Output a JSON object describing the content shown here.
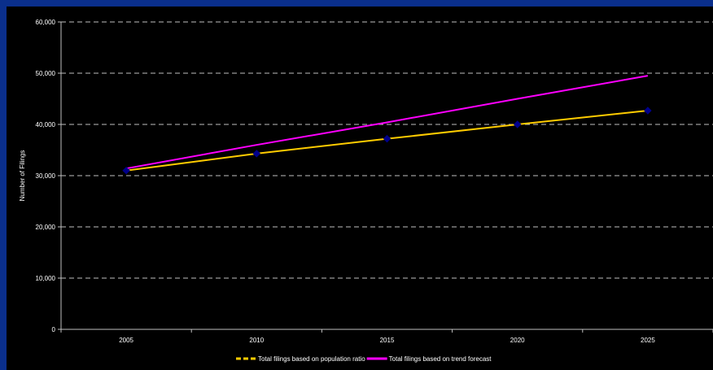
{
  "chart_data": {
    "type": "line",
    "title": "",
    "xlabel": "",
    "ylabel": "Number of Filings",
    "categories": [
      "2005",
      "2010",
      "2015",
      "2020",
      "2025"
    ],
    "y_ticks": [
      "0",
      "10,000",
      "20,000",
      "30,000",
      "40,000",
      "50,000",
      "60,000"
    ],
    "ylim": [
      0,
      60000
    ],
    "grid": true,
    "legend_position": "bottom",
    "series": [
      {
        "name": "Total filings based on population ratio",
        "values": [
          31000,
          34300,
          37200,
          40000,
          42700
        ],
        "color": "#ffcc00",
        "marker_color": "#00008b",
        "legend_style": "dashed"
      },
      {
        "name": "Total filings based on trend forecast",
        "values": [
          31400,
          36000,
          40400,
          45000,
          49500
        ],
        "color": "#ff00ff",
        "legend_style": "solid"
      }
    ],
    "colors": {
      "background": "#000000",
      "frame": "#0a2f8c",
      "grid": "#c0c0c0",
      "text": "#ffffff"
    }
  }
}
